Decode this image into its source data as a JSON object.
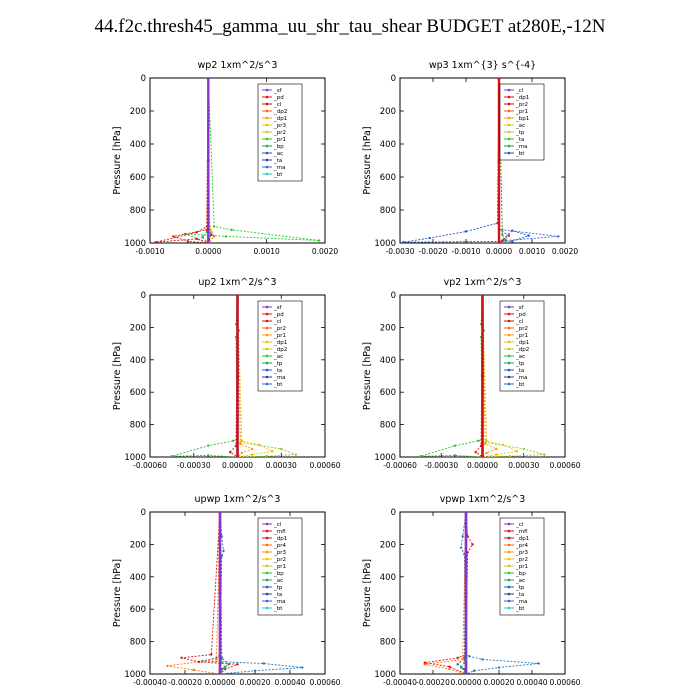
{
  "figure_title": "44.f2c.thresh45_gamma_uu_shr_tau_shear  BUDGET at280E,-12N",
  "chart_data": [
    {
      "type": "line",
      "title": "wp2  1xm^2/s^3",
      "ylabel": "Pressure [hPa]",
      "ylim": [
        1000,
        0
      ],
      "yticks": [
        0,
        200,
        400,
        600,
        800,
        1000
      ],
      "xlim": [
        -0.001,
        0.002
      ],
      "xticks": [
        -0.001,
        0.0,
        0.001,
        0.002
      ],
      "xtick_labels": [
        "-0.0010",
        "0.0000",
        "0.0010",
        "0.0020"
      ],
      "legend": [
        "_sf",
        "_pd",
        "_cl",
        "_dp2",
        "_dp1",
        "_pr3",
        "_pr2",
        "_pr1",
        "_bp",
        "_ac",
        "_ta",
        "_ma",
        "_bt"
      ],
      "series": [
        {
          "name": "_pr1",
          "color": "#f0c000",
          "x": [
            0,
            1e-05,
            5e-05,
            2e-05,
            0
          ],
          "y": [
            0,
            880,
            930,
            975,
            1000
          ]
        },
        {
          "name": "_bp",
          "color": "#22cc22",
          "x": [
            0,
            0.0001,
            0.0004,
            0.0019,
            0.0003,
            -0.0004,
            0
          ],
          "y": [
            0,
            900,
            920,
            985,
            960,
            945,
            1000
          ]
        },
        {
          "name": "_ac",
          "color": "#11aa55",
          "x": [
            0,
            -2e-05,
            -0.0001,
            0
          ],
          "y": [
            0,
            930,
            965,
            1000
          ]
        },
        {
          "name": "_pr3",
          "color": "#ff7700",
          "x": [
            0,
            2e-05,
            0.0001,
            0
          ],
          "y": [
            0,
            900,
            960,
            1000
          ]
        },
        {
          "name": "_dp1",
          "color": "#cc2222",
          "x": [
            0,
            -3e-05,
            -0.0006,
            -0.00035,
            0
          ],
          "y": [
            0,
            920,
            960,
            990,
            1000
          ]
        },
        {
          "name": "_pd",
          "color": "#dd1111",
          "x": [
            0,
            -2e-05,
            -0.0002,
            -0.0009,
            -0.0002,
            0
          ],
          "y": [
            0,
            900,
            935,
            995,
            975,
            1000
          ]
        },
        {
          "name": "_ta",
          "color": "#224499",
          "x": [
            0,
            1e-05,
            5e-05,
            1e-05,
            0
          ],
          "y": [
            0,
            920,
            950,
            980,
            1000
          ]
        },
        {
          "name": "_sf",
          "color": "#8833cc",
          "x": [
            0,
            0,
            0
          ],
          "y": [
            0,
            500,
            1000
          ]
        }
      ]
    },
    {
      "type": "line",
      "title": "wp3  1xm^{3} s^{-4}",
      "ylabel": "Pressure [hPa]",
      "ylim": [
        1000,
        0
      ],
      "yticks": [
        0,
        200,
        400,
        600,
        800,
        1000
      ],
      "xlim": [
        -0.003,
        0.002
      ],
      "xticks": [
        -0.003,
        -0.002,
        -0.001,
        0.0,
        0.001,
        0.002
      ],
      "xtick_labels": [
        "-0.0030",
        "-0.0020",
        "-0.0010",
        "0.0000",
        "0.0010",
        "0.0020"
      ],
      "legend": [
        "_cl",
        "_dp1",
        "_pr2",
        "_pr1",
        "_bp1",
        "_ac",
        "_tp",
        "_ta",
        "_ma",
        "_bt"
      ],
      "series": [
        {
          "name": "_tp",
          "color": "#2255cc",
          "x": [
            0,
            -5e-05,
            -0.001,
            -0.0021,
            -0.0029,
            0.0004,
            0.0009,
            0.0004,
            0
          ],
          "y": [
            0,
            880,
            930,
            970,
            995,
            990,
            955,
            925,
            1000
          ]
        },
        {
          "name": "_ma",
          "color": "#3366dd",
          "x": [
            0,
            0.0001,
            0.0018,
            0.0002,
            0
          ],
          "y": [
            0,
            920,
            960,
            985,
            1000
          ]
        },
        {
          "name": "_ac",
          "color": "#22aa44",
          "x": [
            0,
            0.0001,
            0.0002,
            0
          ],
          "y": [
            0,
            950,
            980,
            1000
          ]
        },
        {
          "name": "_dp1",
          "color": "#cc2222",
          "x": [
            0,
            2e-05,
            0.0003,
            0.0001,
            0
          ],
          "y": [
            0,
            920,
            955,
            985,
            1000
          ]
        },
        {
          "name": "_cl",
          "color": "#dd1111",
          "x": [
            0,
            0,
            0
          ],
          "y": [
            0,
            500,
            1000
          ]
        }
      ]
    },
    {
      "type": "line",
      "title": "up2  1xm^2/s^3",
      "ylabel": "Pressure [hPa]",
      "ylim": [
        1000,
        0
      ],
      "yticks": [
        0,
        200,
        400,
        600,
        800,
        1000
      ],
      "xlim": [
        -0.0006,
        0.0006
      ],
      "xticks": [
        -0.0006,
        -0.0003,
        0.0,
        0.0003,
        0.0006
      ],
      "xtick_labels": [
        "-0.00060",
        "-0.00030",
        "0.00000",
        "0.00030",
        "0.00060"
      ],
      "legend": [
        "_sf",
        "_pd",
        "_cl",
        "_pr2",
        "_pr1",
        "_dp1",
        "_dp2",
        "_ac",
        "_tp",
        "_ta",
        "_ma",
        "_bt"
      ],
      "series": [
        {
          "name": "_ac",
          "color": "#33bb33",
          "x": [
            0,
            -1e-05,
            1e-05,
            -1e-05,
            0,
            -3e-05,
            -0.0002,
            -0.00045,
            -0.0002,
            0
          ],
          "y": [
            0,
            180,
            220,
            260,
            890,
            900,
            930,
            995,
            990,
            1000
          ]
        },
        {
          "name": "_dp1",
          "color": "#88cc22",
          "x": [
            0,
            2e-05,
            0.0003,
            0.0004,
            0.0002,
            0
          ],
          "y": [
            0,
            910,
            950,
            985,
            995,
            1000
          ]
        },
        {
          "name": "_pr1",
          "color": "#f0c000",
          "x": [
            0,
            3e-05,
            0.00015,
            0.00024,
            0.0001,
            0
          ],
          "y": [
            0,
            900,
            925,
            965,
            985,
            1000
          ]
        },
        {
          "name": "_pr2",
          "color": "#ff9900",
          "x": [
            0,
            2e-05,
            0.0001,
            3e-05,
            0
          ],
          "y": [
            0,
            920,
            950,
            975,
            1000
          ]
        },
        {
          "name": "_pd",
          "color": "#dd1111",
          "x": [
            0,
            -1e-05,
            -5e-05,
            0
          ],
          "y": [
            0,
            930,
            970,
            1000
          ]
        },
        {
          "name": "_sf",
          "color": "#8833cc",
          "x": [
            0,
            0,
            0
          ],
          "y": [
            0,
            500,
            1000
          ]
        },
        {
          "name": "_cl",
          "color": "#cc1111",
          "x": [
            0,
            0,
            0
          ],
          "y": [
            0,
            500,
            1000
          ]
        }
      ]
    },
    {
      "type": "line",
      "title": "vp2  1xm^2/s^3",
      "ylabel": "Pressure [hPa]",
      "ylim": [
        1000,
        0
      ],
      "yticks": [
        0,
        200,
        400,
        600,
        800,
        1000
      ],
      "xlim": [
        -0.0006,
        0.0006
      ],
      "xticks": [
        -0.0006,
        -0.0003,
        0.0,
        0.0003,
        0.0006
      ],
      "xtick_labels": [
        "-0.00060",
        "-0.00030",
        "0.00000",
        "0.00030",
        "0.00060"
      ],
      "legend": [
        "_sf",
        "_pd",
        "_cl",
        "_pr2",
        "_pr1",
        "_dp1",
        "_dp2",
        "_ac",
        "_tp",
        "_ta",
        "_ma",
        "_bt"
      ],
      "series": [
        {
          "name": "_ac",
          "color": "#33bb33",
          "x": [
            0,
            -1e-05,
            1e-05,
            -1e-05,
            0,
            -3e-05,
            -0.0002,
            -0.00045,
            -0.0002,
            0
          ],
          "y": [
            0,
            180,
            220,
            260,
            890,
            900,
            930,
            995,
            990,
            1000
          ]
        },
        {
          "name": "_dp1",
          "color": "#88cc22",
          "x": [
            0,
            2e-05,
            0.0003,
            0.00045,
            0.0002,
            0
          ],
          "y": [
            0,
            910,
            950,
            985,
            995,
            1000
          ]
        },
        {
          "name": "_pr1",
          "color": "#f0c000",
          "x": [
            0,
            3e-05,
            0.00015,
            0.00025,
            0.0001,
            0
          ],
          "y": [
            0,
            900,
            925,
            965,
            985,
            1000
          ]
        },
        {
          "name": "_pr2",
          "color": "#ff9900",
          "x": [
            0,
            2e-05,
            0.0001,
            3e-05,
            0
          ],
          "y": [
            0,
            920,
            950,
            975,
            1000
          ]
        },
        {
          "name": "_pd",
          "color": "#dd1111",
          "x": [
            0,
            -1e-05,
            -5e-05,
            0
          ],
          "y": [
            0,
            930,
            970,
            1000
          ]
        },
        {
          "name": "_sf",
          "color": "#8833cc",
          "x": [
            0,
            0,
            0
          ],
          "y": [
            0,
            500,
            1000
          ]
        },
        {
          "name": "_cl",
          "color": "#cc1111",
          "x": [
            0,
            0,
            0
          ],
          "y": [
            0,
            500,
            1000
          ]
        }
      ]
    },
    {
      "type": "line",
      "title": "upwp  1xm^2/s^3",
      "ylabel": "Pressure [hPa]",
      "ylim": [
        1000,
        0
      ],
      "yticks": [
        0,
        200,
        400,
        600,
        800,
        1000
      ],
      "xlim": [
        -0.0004,
        0.0006
      ],
      "xticks": [
        -0.0004,
        -0.0002,
        0.0,
        0.0002,
        0.0004,
        0.0006
      ],
      "xtick_labels": [
        "-0.00040",
        "-0.00020",
        "0.00000",
        "0.00020",
        "0.00040",
        "0.00060"
      ],
      "legend": [
        "_cl",
        "_mfl",
        "_dp1",
        "_pr4",
        "_pr3",
        "_pr2",
        "_pr1",
        "_bp",
        "_ac",
        "_tp",
        "_ta",
        "_ma",
        "_bt"
      ],
      "series": [
        {
          "name": "_tp",
          "color": "#2277bb",
          "x": [
            0,
            1e-05,
            2e-05,
            1e-05,
            0,
            -2e-05,
            -0.0001,
            0.00025,
            0.00047,
            0.0002,
            0
          ],
          "y": [
            0,
            150,
            240,
            270,
            880,
            900,
            920,
            935,
            960,
            980,
            1000
          ]
        },
        {
          "name": "_ta",
          "color": "#226688",
          "x": [
            0,
            1e-05,
            5e-05,
            1e-05,
            0
          ],
          "y": [
            0,
            900,
            940,
            970,
            1000
          ]
        },
        {
          "name": "_pr1",
          "color": "#ff7700",
          "x": [
            0,
            -2e-05,
            -0.0003,
            -0.00015,
            0
          ],
          "y": [
            0,
            910,
            950,
            975,
            1000
          ]
        },
        {
          "name": "_dp1",
          "color": "#dd1111",
          "x": [
            0,
            -5e-05,
            -0.00022,
            -0.00012,
            0.0001,
            3e-05,
            0
          ],
          "y": [
            0,
            880,
            900,
            925,
            940,
            970,
            1000
          ]
        },
        {
          "name": "_ac",
          "color": "#22aa44",
          "x": [
            0,
            1e-05,
            3e-05,
            0
          ],
          "y": [
            0,
            930,
            960,
            1000
          ]
        },
        {
          "name": "_mfl",
          "color": "#aa1155",
          "x": [
            0,
            0,
            0
          ],
          "y": [
            0,
            500,
            1000
          ]
        },
        {
          "name": "_cl",
          "color": "#8833cc",
          "x": [
            0,
            0,
            0
          ],
          "y": [
            0,
            500,
            1000
          ]
        }
      ]
    },
    {
      "type": "line",
      "title": "vpwp  1xm^2/s^3",
      "ylabel": "Pressure [hPa]",
      "ylim": [
        1000,
        0
      ],
      "yticks": [
        0,
        200,
        400,
        600,
        800,
        1000
      ],
      "xlim": [
        -0.0004,
        0.0006
      ],
      "xticks": [
        -0.0004,
        -0.0002,
        0.0,
        0.0002,
        0.0004,
        0.0006
      ],
      "xtick_labels": [
        "-0.00040",
        "-0.00020",
        "0.00000",
        "0.00020",
        "0.00040",
        "0.00060"
      ],
      "legend": [
        "_cl",
        "_mfl",
        "_dp1",
        "_pr4",
        "_pr3",
        "_pr2",
        "_pr1",
        "_bp",
        "_ac",
        "_tp",
        "_ta",
        "_ma",
        "_bt"
      ],
      "series": [
        {
          "name": "_tp",
          "color": "#2277bb",
          "x": [
            0,
            -2e-05,
            -3e-05,
            -1e-05,
            0,
            2e-05,
            0.0001,
            0.00044,
            0.0002,
            5e-05,
            0
          ],
          "y": [
            0,
            150,
            220,
            260,
            880,
            890,
            910,
            935,
            960,
            980,
            1000
          ]
        },
        {
          "name": "_ta",
          "color": "#226688",
          "x": [
            0,
            -1e-05,
            -5e-05,
            -1e-05,
            0
          ],
          "y": [
            0,
            900,
            940,
            970,
            1000
          ]
        },
        {
          "name": "_pr1",
          "color": "#ff7700",
          "x": [
            0,
            -2e-05,
            -0.00025,
            -0.0001,
            0
          ],
          "y": [
            0,
            910,
            940,
            970,
            1000
          ]
        },
        {
          "name": "_dp1",
          "color": "#dd1111",
          "x": [
            0,
            1e-05,
            4e-05,
            1e-05,
            0,
            -5e-05,
            -0.00025,
            -0.0001,
            0
          ],
          "y": [
            0,
            150,
            200,
            250,
            880,
            900,
            930,
            955,
            1000
          ]
        },
        {
          "name": "_ac",
          "color": "#22aa44",
          "x": [
            0,
            -1e-05,
            -3e-05,
            0
          ],
          "y": [
            0,
            930,
            960,
            1000
          ]
        },
        {
          "name": "_mfl",
          "color": "#aa1155",
          "x": [
            0,
            0,
            0
          ],
          "y": [
            0,
            500,
            1000
          ]
        },
        {
          "name": "_cl",
          "color": "#8833cc",
          "x": [
            0,
            0,
            0
          ],
          "y": [
            0,
            500,
            1000
          ]
        }
      ]
    }
  ]
}
